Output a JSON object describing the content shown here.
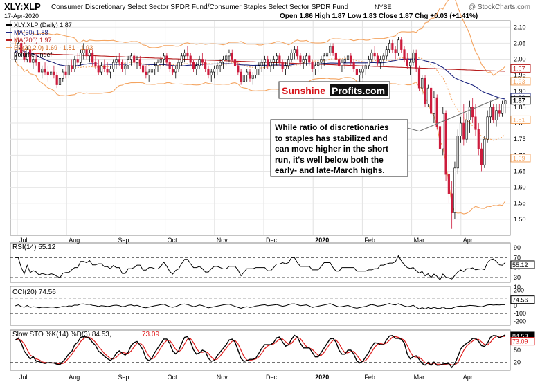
{
  "header": {
    "symbol": "XLY:XLP",
    "description": "Consumer Discretionary Select Sector SPDR Fund/Consumer Staples Select Sector SPDR Fund",
    "exchange": "NYSE",
    "date": "17-Apr-2020",
    "quote": "Open 1.86  High 1.87  Low 1.83  Close 1.87  Chg +0.03 (+1.41%)",
    "watermark": "@ StockCharts.com"
  },
  "colors": {
    "up": "#000000",
    "down": "#cc1b3c",
    "ma50": "#1a237e",
    "ma200": "#b71c1c",
    "bb": "#f4a460",
    "rsi_line": "#000000",
    "cci_pos": "#3a6b3a",
    "cci_neg": "#7b3f3f",
    "sto_k": "#000000",
    "sto_d": "#e01b1b"
  },
  "chart_data": [
    {
      "type": "candlestick",
      "legend": [
        "XLY:XLP (Daily) 1.87",
        "MA(50) 1.88",
        "MA(200) 1.97",
        "BB(20,2.0) 1.69 - 1.81 - 1.93",
        "Volume undef"
      ],
      "ylim": [
        1.45,
        2.12
      ],
      "yticks": [
        "2.10",
        "2.05",
        "2.00",
        "1.95",
        "1.90",
        "1.85",
        "1.80",
        "1.75",
        "1.70",
        "1.65",
        "1.60",
        "1.55",
        "1.50"
      ],
      "tags": [
        {
          "label": "1.97",
          "value": 1.97,
          "color": "#b71c1c"
        },
        {
          "label": "1.93",
          "value": 1.93,
          "color": "#f4a460"
        },
        {
          "label": "1.88",
          "value": 1.88,
          "color": "#1a237e"
        },
        {
          "label": "1.87",
          "value": 1.87,
          "color": "#000000"
        },
        {
          "label": "1.81",
          "value": 1.81,
          "color": "#f4a460"
        },
        {
          "label": "1.69",
          "value": 1.69,
          "color": "#f4a460"
        }
      ],
      "months": [
        "Jul",
        "Aug",
        "Sep",
        "Oct",
        "Nov",
        "Dec",
        "2020",
        "Feb",
        "Mar",
        "Apr"
      ],
      "ohlc": [
        [
          2.0,
          2.03,
          1.99,
          2.02
        ],
        [
          2.02,
          2.06,
          2.01,
          2.05
        ],
        [
          2.05,
          2.06,
          2.01,
          2.02
        ],
        [
          2.02,
          2.03,
          1.99,
          2.0
        ],
        [
          2.0,
          2.04,
          1.99,
          2.03
        ],
        [
          2.03,
          2.04,
          1.98,
          1.99
        ],
        [
          1.99,
          2.01,
          1.97,
          2.0
        ],
        [
          2.0,
          2.02,
          1.98,
          1.99
        ],
        [
          1.99,
          2.0,
          1.95,
          1.96
        ],
        [
          1.96,
          1.98,
          1.94,
          1.97
        ],
        [
          1.97,
          1.99,
          1.95,
          1.96
        ],
        [
          1.96,
          1.98,
          1.93,
          1.95
        ],
        [
          1.95,
          1.97,
          1.93,
          1.96
        ],
        [
          1.96,
          1.98,
          1.94,
          1.95
        ],
        [
          1.95,
          1.96,
          1.91,
          1.92
        ],
        [
          1.92,
          1.95,
          1.91,
          1.94
        ],
        [
          1.94,
          1.97,
          1.93,
          1.96
        ],
        [
          1.96,
          1.98,
          1.94,
          1.95
        ],
        [
          1.95,
          1.99,
          1.94,
          1.98
        ],
        [
          1.98,
          2.0,
          1.96,
          1.97
        ],
        [
          1.97,
          2.01,
          1.96,
          2.0
        ],
        [
          2.0,
          2.02,
          1.98,
          1.99
        ],
        [
          1.99,
          2.03,
          1.98,
          2.02
        ],
        [
          2.02,
          2.05,
          2.0,
          2.03
        ],
        [
          2.03,
          2.04,
          2.0,
          2.01
        ],
        [
          2.01,
          2.03,
          1.99,
          2.02
        ],
        [
          2.02,
          2.03,
          1.98,
          1.99
        ],
        [
          1.99,
          2.01,
          1.97,
          1.98
        ],
        [
          1.98,
          2.0,
          1.95,
          1.96
        ],
        [
          1.96,
          1.99,
          1.95,
          1.98
        ],
        [
          1.98,
          2.0,
          1.96,
          1.97
        ],
        [
          1.97,
          1.99,
          1.95,
          1.96
        ],
        [
          1.96,
          1.98,
          1.94,
          1.97
        ],
        [
          1.97,
          2.0,
          1.96,
          1.99
        ],
        [
          1.99,
          2.01,
          1.97,
          2.0
        ],
        [
          2.0,
          2.02,
          1.98,
          1.99
        ],
        [
          1.99,
          2.0,
          1.96,
          1.97
        ],
        [
          1.97,
          1.99,
          1.95,
          1.98
        ],
        [
          1.98,
          2.01,
          1.97,
          2.0
        ],
        [
          2.0,
          2.02,
          1.98,
          2.01
        ],
        [
          2.01,
          2.02,
          1.98,
          1.99
        ],
        [
          1.99,
          2.01,
          1.97,
          2.0
        ],
        [
          2.0,
          2.01,
          1.97,
          1.98
        ],
        [
          1.98,
          1.99,
          1.95,
          1.96
        ],
        [
          1.96,
          1.98,
          1.94,
          1.95
        ],
        [
          1.95,
          1.97,
          1.93,
          1.96
        ],
        [
          1.96,
          1.98,
          1.94,
          1.97
        ],
        [
          1.97,
          1.99,
          1.95,
          1.98
        ],
        [
          1.98,
          2.0,
          1.96,
          1.99
        ],
        [
          1.99,
          2.01,
          1.97,
          2.0
        ],
        [
          2.0,
          2.02,
          1.98,
          2.01
        ],
        [
          2.01,
          2.02,
          1.98,
          1.99
        ],
        [
          1.99,
          2.0,
          1.96,
          1.97
        ],
        [
          1.97,
          1.98,
          1.95,
          1.96
        ],
        [
          1.96,
          1.98,
          1.94,
          1.97
        ],
        [
          1.97,
          2.0,
          1.96,
          1.99
        ],
        [
          1.99,
          2.02,
          1.98,
          2.01
        ],
        [
          2.01,
          2.03,
          1.99,
          2.02
        ],
        [
          2.02,
          2.04,
          2.0,
          2.01
        ],
        [
          2.01,
          2.02,
          1.98,
          1.99
        ],
        [
          1.99,
          2.0,
          1.96,
          1.97
        ],
        [
          1.97,
          1.99,
          1.95,
          1.98
        ],
        [
          1.98,
          2.01,
          1.97,
          2.0
        ],
        [
          2.0,
          2.02,
          1.98,
          1.99
        ],
        [
          1.99,
          2.0,
          1.96,
          1.97
        ],
        [
          1.97,
          1.98,
          1.94,
          1.95
        ],
        [
          1.95,
          1.97,
          1.93,
          1.96
        ],
        [
          1.96,
          1.98,
          1.94,
          1.97
        ],
        [
          1.97,
          1.99,
          1.95,
          1.98
        ],
        [
          1.98,
          2.0,
          1.96,
          1.99
        ],
        [
          1.99,
          2.01,
          1.97,
          2.0
        ],
        [
          2.0,
          2.02,
          1.98,
          2.01
        ],
        [
          2.01,
          2.03,
          1.99,
          2.02
        ],
        [
          2.02,
          2.03,
          1.99,
          2.0
        ],
        [
          2.0,
          2.01,
          1.97,
          1.98
        ],
        [
          1.98,
          1.99,
          1.95,
          1.96
        ],
        [
          1.96,
          1.97,
          1.92,
          1.93
        ],
        [
          1.93,
          1.96,
          1.92,
          1.95
        ],
        [
          1.95,
          1.97,
          1.93,
          1.96
        ],
        [
          1.96,
          1.97,
          1.93,
          1.94
        ],
        [
          1.94,
          1.96,
          1.92,
          1.95
        ],
        [
          1.95,
          1.98,
          1.94,
          1.97
        ],
        [
          1.97,
          1.99,
          1.95,
          1.98
        ],
        [
          1.98,
          2.0,
          1.96,
          1.99
        ],
        [
          1.99,
          2.01,
          1.97,
          2.0
        ],
        [
          2.0,
          2.01,
          1.97,
          1.98
        ],
        [
          1.98,
          2.0,
          1.96,
          1.99
        ],
        [
          1.99,
          2.01,
          1.97,
          2.0
        ],
        [
          2.0,
          2.02,
          1.98,
          2.01
        ],
        [
          2.01,
          2.02,
          1.98,
          1.99
        ],
        [
          1.99,
          2.0,
          1.96,
          1.97
        ],
        [
          1.97,
          1.99,
          1.95,
          1.98
        ],
        [
          1.98,
          2.01,
          1.97,
          2.0
        ],
        [
          2.0,
          2.03,
          1.99,
          2.02
        ],
        [
          2.02,
          2.04,
          2.0,
          2.03
        ],
        [
          2.03,
          2.04,
          2.0,
          2.01
        ],
        [
          2.01,
          2.02,
          1.98,
          1.99
        ],
        [
          1.99,
          2.01,
          1.97,
          2.0
        ],
        [
          2.0,
          2.02,
          1.98,
          2.01
        ],
        [
          2.01,
          2.02,
          1.98,
          1.99
        ],
        [
          1.99,
          2.0,
          1.96,
          1.97
        ],
        [
          1.97,
          1.99,
          1.95,
          1.98
        ],
        [
          1.98,
          2.0,
          1.96,
          1.99
        ],
        [
          1.99,
          2.01,
          1.97,
          2.0
        ],
        [
          2.0,
          2.02,
          1.98,
          2.01
        ],
        [
          2.01,
          2.03,
          1.99,
          2.02
        ],
        [
          2.02,
          2.05,
          2.01,
          2.04
        ],
        [
          2.04,
          2.05,
          2.01,
          2.02
        ],
        [
          2.02,
          2.03,
          1.99,
          2.0
        ],
        [
          2.0,
          2.01,
          1.97,
          1.98
        ],
        [
          1.98,
          2.0,
          1.96,
          1.99
        ],
        [
          1.99,
          2.01,
          1.97,
          2.0
        ],
        [
          2.0,
          2.02,
          1.98,
          2.01
        ],
        [
          2.01,
          2.02,
          1.98,
          1.99
        ],
        [
          1.99,
          2.0,
          1.96,
          1.97
        ],
        [
          1.97,
          1.98,
          1.94,
          1.95
        ],
        [
          1.95,
          1.97,
          1.93,
          1.96
        ],
        [
          1.96,
          1.98,
          1.94,
          1.97
        ],
        [
          1.97,
          1.99,
          1.95,
          1.98
        ],
        [
          1.98,
          2.01,
          1.97,
          2.0
        ],
        [
          2.0,
          2.03,
          1.99,
          2.02
        ],
        [
          2.02,
          2.04,
          2.0,
          2.01
        ],
        [
          2.01,
          2.02,
          1.98,
          1.99
        ],
        [
          1.99,
          2.01,
          1.97,
          2.0
        ],
        [
          2.0,
          2.02,
          1.98,
          2.01
        ],
        [
          2.01,
          2.04,
          2.0,
          2.03
        ],
        [
          2.03,
          2.06,
          2.02,
          2.05
        ],
        [
          2.05,
          2.06,
          2.02,
          2.03
        ],
        [
          2.03,
          2.04,
          2.0,
          2.02
        ],
        [
          2.02,
          2.07,
          2.01,
          2.06
        ],
        [
          2.06,
          2.07,
          2.02,
          2.03
        ],
        [
          2.03,
          2.04,
          1.99,
          2.0
        ],
        [
          2.0,
          2.02,
          1.97,
          1.98
        ],
        [
          1.98,
          2.0,
          1.95,
          1.99
        ],
        [
          1.99,
          2.03,
          1.98,
          2.02
        ],
        [
          2.02,
          2.03,
          1.96,
          1.97
        ],
        [
          1.97,
          1.98,
          1.9,
          1.91
        ],
        [
          1.91,
          1.95,
          1.89,
          1.94
        ],
        [
          1.94,
          1.95,
          1.85,
          1.86
        ],
        [
          1.86,
          1.92,
          1.85,
          1.91
        ],
        [
          1.91,
          1.93,
          1.82,
          1.83
        ],
        [
          1.83,
          1.9,
          1.8,
          1.88
        ],
        [
          1.88,
          1.89,
          1.78,
          1.79
        ],
        [
          1.79,
          1.8,
          1.7,
          1.72
        ],
        [
          1.72,
          1.85,
          1.7,
          1.83
        ],
        [
          1.83,
          1.84,
          1.62,
          1.64
        ],
        [
          1.64,
          1.7,
          1.55,
          1.58
        ],
        [
          1.58,
          1.62,
          1.47,
          1.52
        ],
        [
          1.52,
          1.68,
          1.5,
          1.66
        ],
        [
          1.66,
          1.78,
          1.64,
          1.76
        ],
        [
          1.76,
          1.82,
          1.74,
          1.8
        ],
        [
          1.8,
          1.86,
          1.73,
          1.75
        ],
        [
          1.75,
          1.83,
          1.74,
          1.81
        ],
        [
          1.81,
          1.87,
          1.77,
          1.85
        ],
        [
          1.85,
          1.88,
          1.8,
          1.82
        ],
        [
          1.82,
          1.86,
          1.76,
          1.78
        ],
        [
          1.78,
          1.8,
          1.7,
          1.72
        ],
        [
          1.72,
          1.74,
          1.65,
          1.67
        ],
        [
          1.67,
          1.76,
          1.66,
          1.75
        ],
        [
          1.75,
          1.84,
          1.74,
          1.82
        ],
        [
          1.82,
          1.87,
          1.8,
          1.85
        ],
        [
          1.85,
          1.86,
          1.8,
          1.81
        ],
        [
          1.81,
          1.86,
          1.79,
          1.84
        ],
        [
          1.84,
          1.86,
          1.82,
          1.83
        ],
        [
          1.83,
          1.87,
          1.82,
          1.86
        ],
        [
          1.86,
          1.87,
          1.83,
          1.87
        ]
      ]
    },
    {
      "type": "line",
      "name": "RSI(14) 55.12",
      "legend": "RSI(14) 55.12",
      "ylim": [
        20,
        100
      ],
      "yticks": [
        "90",
        "70",
        "50",
        "30",
        "10"
      ],
      "guides": [
        70,
        30
      ],
      "tag": "55.12"
    },
    {
      "type": "area",
      "name": "CCI(20) 74.56",
      "legend": "CCI(20) 74.56",
      "ylim": [
        -250,
        250
      ],
      "yticks": [
        "200",
        "100",
        "0",
        "-100",
        "-200"
      ],
      "guides": [
        100,
        -100
      ],
      "tag": "74.56"
    },
    {
      "type": "line",
      "name": "Slow STO %K(14) %D(3)",
      "legend_a": "Slow STO %K(14) %D(3) 84.53,",
      "legend_b": "73.09",
      "ylim": [
        0,
        100
      ],
      "yticks": [
        "80",
        "50",
        "20"
      ],
      "guides": [
        80,
        20
      ],
      "tag_k": "84.53",
      "tag_d": "73.09"
    }
  ],
  "annotation": {
    "brand_part1": "Sunshine",
    "brand_part2": "Profits.com",
    "comment": [
      "While ratio of discretionaries",
      "to staples has stabilized and",
      "can move higher in the short",
      "run, it's well below both the",
      "early- and late-March highs."
    ]
  }
}
